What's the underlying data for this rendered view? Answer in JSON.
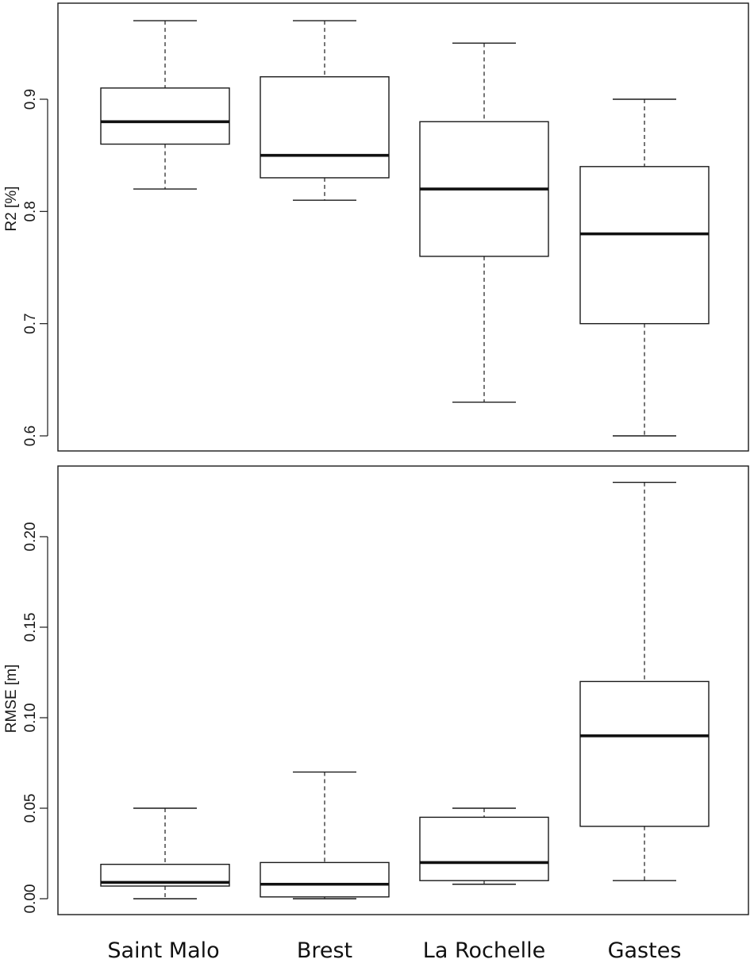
{
  "chart_data": [
    {
      "type": "box",
      "ylabel": "R2 [%]",
      "ylim": [
        0.6,
        0.95
      ],
      "yticks": [
        "0.6",
        "0.7",
        "0.8",
        "0.9"
      ],
      "categories": [
        "Saint Malo",
        "Brest",
        "La Rochelle",
        "Gastes"
      ],
      "boxes": [
        {
          "min": 0.82,
          "q1": 0.86,
          "median": 0.88,
          "q3": 0.91,
          "max": 0.97
        },
        {
          "min": 0.81,
          "q1": 0.83,
          "median": 0.85,
          "q3": 0.92,
          "max": 0.97
        },
        {
          "min": 0.63,
          "q1": 0.76,
          "median": 0.82,
          "q3": 0.88,
          "max": 0.95
        },
        {
          "min": 0.6,
          "q1": 0.7,
          "median": 0.78,
          "q3": 0.84,
          "max": 0.9
        }
      ]
    },
    {
      "type": "box",
      "ylabel": "RMSE [m]",
      "ylim": [
        0.0,
        0.23
      ],
      "yticks": [
        "0.00",
        "0.05",
        "0.10",
        "0.15",
        "0.20"
      ],
      "categories": [
        "Saint Malo",
        "Brest",
        "La Rochelle",
        "Gastes"
      ],
      "boxes": [
        {
          "min": 0.0,
          "q1": 0.007,
          "median": 0.009,
          "q3": 0.019,
          "max": 0.05
        },
        {
          "min": 0.0,
          "q1": 0.001,
          "median": 0.008,
          "q3": 0.02,
          "max": 0.07
        },
        {
          "min": 0.008,
          "q1": 0.01,
          "median": 0.02,
          "q3": 0.045,
          "max": 0.05
        },
        {
          "min": 0.01,
          "q1": 0.04,
          "median": 0.09,
          "q3": 0.12,
          "max": 0.23
        }
      ]
    }
  ],
  "x_labels": [
    "Saint Malo",
    "Brest",
    "La Rochelle",
    "Gastes"
  ]
}
